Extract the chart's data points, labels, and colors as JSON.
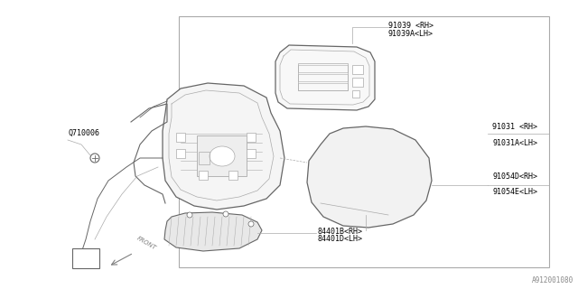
{
  "bg_color": "#ffffff",
  "line_color": "#aaaaaa",
  "dark_line": "#666666",
  "diagram_id": "A912001080",
  "label_texts": {
    "Q710006": "Q710006",
    "91039_RH": "91039 <RH>",
    "91039A_LH": "91039A<LH>",
    "91031_RH": "91031 <RH>",
    "91031A_LH": "91031A<LH>",
    "91054D_RH": "91054D<RH>",
    "91054E_LH": "91054E<LH>",
    "84401B_RH": "84401B<RH>",
    "84401D_LH": "84401D<LH>",
    "diag_id": "A912001080"
  },
  "font_size": 6.0
}
